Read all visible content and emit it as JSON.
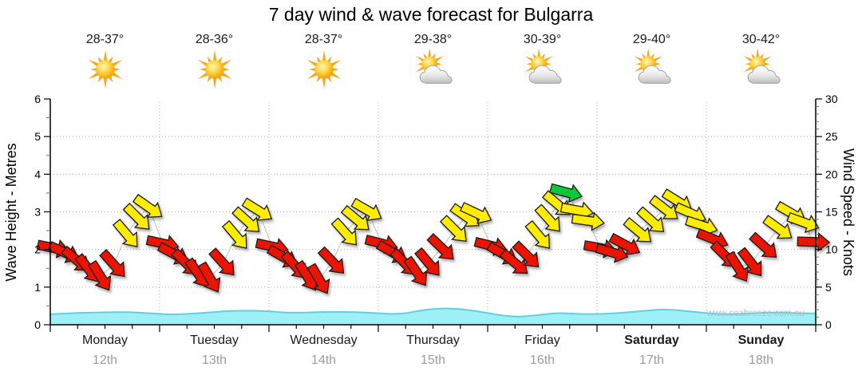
{
  "title": "7 day wind & wave forecast for Bulgarra",
  "watermark": "www.seabreeze.com.au",
  "axes": {
    "left_label": "Wave Height - Metres",
    "right_label": "Wind Speed - Knots",
    "left_ticks": [
      0,
      1,
      2,
      3,
      4,
      5,
      6
    ],
    "right_ticks": [
      0,
      5,
      10,
      15,
      20,
      25,
      30
    ]
  },
  "days": [
    {
      "name": "Monday",
      "date": "12th",
      "temp": "28-37°",
      "icon": "sunny",
      "bold": false
    },
    {
      "name": "Tuesday",
      "date": "13th",
      "temp": "28-36°",
      "icon": "sunny",
      "bold": false
    },
    {
      "name": "Wednesday",
      "date": "14th",
      "temp": "28-37°",
      "icon": "sunny",
      "bold": false
    },
    {
      "name": "Thursday",
      "date": "15th",
      "temp": "29-38°",
      "icon": "partly-cloudy",
      "bold": false
    },
    {
      "name": "Friday",
      "date": "16th",
      "temp": "30-39°",
      "icon": "partly-cloudy",
      "bold": false
    },
    {
      "name": "Saturday",
      "date": "17th",
      "temp": "29-40°",
      "icon": "partly-cloudy",
      "bold": true
    },
    {
      "name": "Sunday",
      "date": "18th",
      "temp": "30-42°",
      "icon": "partly-cloudy",
      "bold": true
    }
  ],
  "colors": {
    "arrow_red": "#EA1400",
    "arrow_yellow": "#FFEC00",
    "arrow_green": "#0AC93B",
    "arrow_outline": "#1a1a1a",
    "wave_fill": "#9FEFF7",
    "wave_edge": "#63CFDC",
    "wind_line": "#C9C9C9",
    "grid": "#ABABAB",
    "axis": "#000000"
  },
  "chart_data": {
    "type": "line",
    "title": "7 day wind & wave forecast for Bulgarra",
    "x_axis": {
      "unit": "days (0 = Monday 00:00)",
      "categories": [
        "Monday",
        "Tuesday",
        "Wednesday",
        "Thursday",
        "Friday",
        "Saturday",
        "Sunday"
      ],
      "dates": [
        "12th",
        "13th",
        "14th",
        "15th",
        "16th",
        "17th",
        "18th"
      ]
    },
    "y_left": {
      "label": "Wave Height - Metres",
      "range": [
        0,
        6
      ],
      "ticks": [
        0,
        1,
        2,
        3,
        4,
        5,
        6
      ]
    },
    "y_right": {
      "label": "Wind Speed - Knots",
      "range": [
        0,
        30
      ],
      "ticks": [
        0,
        5,
        10,
        15,
        20,
        25,
        30
      ]
    },
    "grid": "dotted",
    "legend": "none",
    "wind_series": {
      "name": "Wind Speed",
      "unit": "knots",
      "marker": "direction-arrow",
      "color_key": {
        "r": "red",
        "y": "yellow",
        "g": "green"
      },
      "points": [
        [
          0.03,
          10.2,
          12,
          "r"
        ],
        [
          0.13,
          9.6,
          25,
          "r"
        ],
        [
          0.24,
          8.6,
          40,
          "r"
        ],
        [
          0.35,
          7.4,
          52,
          "r"
        ],
        [
          0.46,
          6.4,
          58,
          "r"
        ],
        [
          0.58,
          8.0,
          48,
          "r"
        ],
        [
          0.7,
          12.0,
          50,
          "y"
        ],
        [
          0.8,
          14.2,
          45,
          "y"
        ],
        [
          0.9,
          15.6,
          35,
          "y"
        ],
        [
          1.03,
          10.8,
          12,
          "r"
        ],
        [
          1.13,
          9.4,
          28,
          "r"
        ],
        [
          1.24,
          8.2,
          45,
          "r"
        ],
        [
          1.35,
          6.8,
          55,
          "r"
        ],
        [
          1.46,
          6.2,
          60,
          "r"
        ],
        [
          1.58,
          8.2,
          48,
          "r"
        ],
        [
          1.7,
          11.8,
          50,
          "y"
        ],
        [
          1.8,
          13.8,
          42,
          "y"
        ],
        [
          1.9,
          15.2,
          32,
          "y"
        ],
        [
          2.03,
          10.4,
          12,
          "r"
        ],
        [
          2.13,
          9.0,
          30,
          "r"
        ],
        [
          2.24,
          7.8,
          48,
          "r"
        ],
        [
          2.35,
          6.4,
          58,
          "r"
        ],
        [
          2.46,
          6.0,
          60,
          "r"
        ],
        [
          2.58,
          8.4,
          46,
          "r"
        ],
        [
          2.7,
          12.2,
          48,
          "y"
        ],
        [
          2.8,
          14.0,
          40,
          "y"
        ],
        [
          2.9,
          15.2,
          30,
          "y"
        ],
        [
          3.03,
          10.8,
          14,
          "r"
        ],
        [
          3.13,
          9.6,
          30,
          "r"
        ],
        [
          3.24,
          8.2,
          46,
          "r"
        ],
        [
          3.35,
          7.0,
          56,
          "r"
        ],
        [
          3.46,
          8.2,
          50,
          "r"
        ],
        [
          3.58,
          10.2,
          44,
          "r"
        ],
        [
          3.7,
          12.6,
          45,
          "y"
        ],
        [
          3.8,
          14.4,
          35,
          "y"
        ],
        [
          3.9,
          14.8,
          25,
          "y"
        ],
        [
          4.03,
          10.5,
          14,
          "r"
        ],
        [
          4.14,
          9.4,
          30,
          "r"
        ],
        [
          4.25,
          8.2,
          40,
          "r"
        ],
        [
          4.36,
          9.2,
          45,
          "r"
        ],
        [
          4.47,
          11.8,
          50,
          "y"
        ],
        [
          4.56,
          14.0,
          48,
          "y"
        ],
        [
          4.64,
          16.0,
          40,
          "y"
        ],
        [
          4.72,
          17.6,
          15,
          "g"
        ],
        [
          4.82,
          15.2,
          10,
          "y"
        ],
        [
          4.92,
          13.8,
          8,
          "y"
        ],
        [
          5.03,
          10.2,
          10,
          "r"
        ],
        [
          5.14,
          9.6,
          16,
          "r"
        ],
        [
          5.26,
          10.6,
          28,
          "r"
        ],
        [
          5.38,
          12.4,
          40,
          "y"
        ],
        [
          5.5,
          13.8,
          42,
          "y"
        ],
        [
          5.62,
          15.4,
          38,
          "y"
        ],
        [
          5.74,
          16.4,
          32,
          "y"
        ],
        [
          5.86,
          14.8,
          24,
          "y"
        ],
        [
          5.96,
          13.2,
          18,
          "y"
        ],
        [
          6.06,
          11.4,
          22,
          "r"
        ],
        [
          6.17,
          9.2,
          45,
          "r"
        ],
        [
          6.29,
          7.6,
          58,
          "r"
        ],
        [
          6.41,
          8.2,
          52,
          "r"
        ],
        [
          6.53,
          10.4,
          42,
          "r"
        ],
        [
          6.66,
          12.8,
          36,
          "y"
        ],
        [
          6.78,
          14.8,
          30,
          "y"
        ],
        [
          6.89,
          13.6,
          20,
          "y"
        ],
        [
          6.98,
          11.0,
          2,
          "r"
        ]
      ],
      "tail": [
        7.02,
        5.0
      ]
    },
    "wave_series": {
      "name": "Wave Height",
      "unit": "metres",
      "style": "area",
      "points": [
        [
          0,
          0.28
        ],
        [
          0.2,
          0.31
        ],
        [
          0.49,
          0.33
        ],
        [
          0.7,
          0.34
        ],
        [
          0.9,
          0.31
        ],
        [
          1.08,
          0.27
        ],
        [
          1.3,
          0.29
        ],
        [
          1.55,
          0.35
        ],
        [
          1.74,
          0.38
        ],
        [
          2.0,
          0.36
        ],
        [
          2.2,
          0.31
        ],
        [
          2.62,
          0.35
        ],
        [
          2.95,
          0.32
        ],
        [
          3.2,
          0.27
        ],
        [
          3.45,
          0.42
        ],
        [
          3.7,
          0.44
        ],
        [
          3.95,
          0.34
        ],
        [
          4.23,
          0.2
        ],
        [
          4.45,
          0.25
        ],
        [
          4.63,
          0.32
        ],
        [
          4.85,
          0.28
        ],
        [
          5.1,
          0.29
        ],
        [
          5.4,
          0.36
        ],
        [
          5.62,
          0.42
        ],
        [
          5.9,
          0.34
        ],
        [
          6.14,
          0.27
        ],
        [
          6.4,
          0.3
        ],
        [
          6.6,
          0.33
        ],
        [
          6.8,
          0.31
        ],
        [
          7.0,
          0.3
        ]
      ]
    }
  }
}
